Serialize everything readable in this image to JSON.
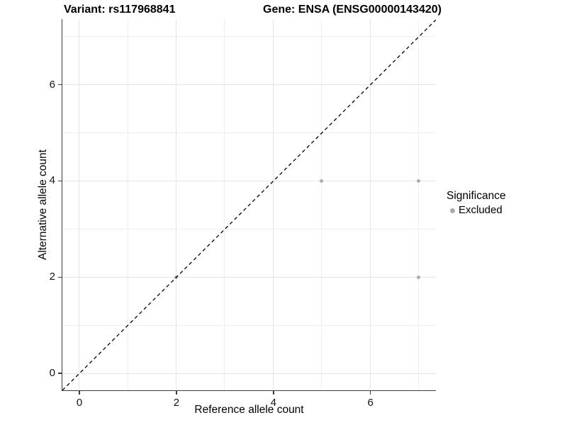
{
  "titles": {
    "variant": "Variant: rs117968841",
    "gene": "Gene: ENSA (ENSG00000143420)"
  },
  "chart_data": {
    "type": "scatter",
    "title": "Variant: rs117968841   Gene: ENSA (ENSG00000143420)",
    "xlabel": "Reference allele count",
    "ylabel": "Alternative allele count",
    "xlim": [
      -0.35,
      7.35
    ],
    "ylim": [
      -0.35,
      7.35
    ],
    "x_ticks": [
      0,
      2,
      4,
      6
    ],
    "x_minor_ticks": [
      1,
      3,
      5,
      7
    ],
    "y_ticks": [
      0,
      2,
      4,
      6
    ],
    "y_minor_ticks": [
      1,
      3,
      5,
      7
    ],
    "grid": "major and minor gridlines on white background",
    "series": [
      {
        "name": "Excluded",
        "marker": "circle",
        "color": "#ababab",
        "points": [
          [
            2,
            2
          ],
          [
            5,
            4
          ],
          [
            7,
            4
          ],
          [
            7,
            2
          ]
        ]
      }
    ],
    "reference_line": {
      "type": "identity y=x",
      "style": "dashed",
      "color": "#000000"
    },
    "legend": {
      "title": "Significance",
      "position": "right",
      "items": [
        {
          "label": "Excluded",
          "color": "#ababab"
        }
      ]
    }
  },
  "colors": {
    "background": "#ffffff",
    "major_grid": "#e4e4e4",
    "minor_grid": "#efefef",
    "axis_line": "#3c3c3c",
    "point": "#ababab",
    "text": "#000000"
  }
}
